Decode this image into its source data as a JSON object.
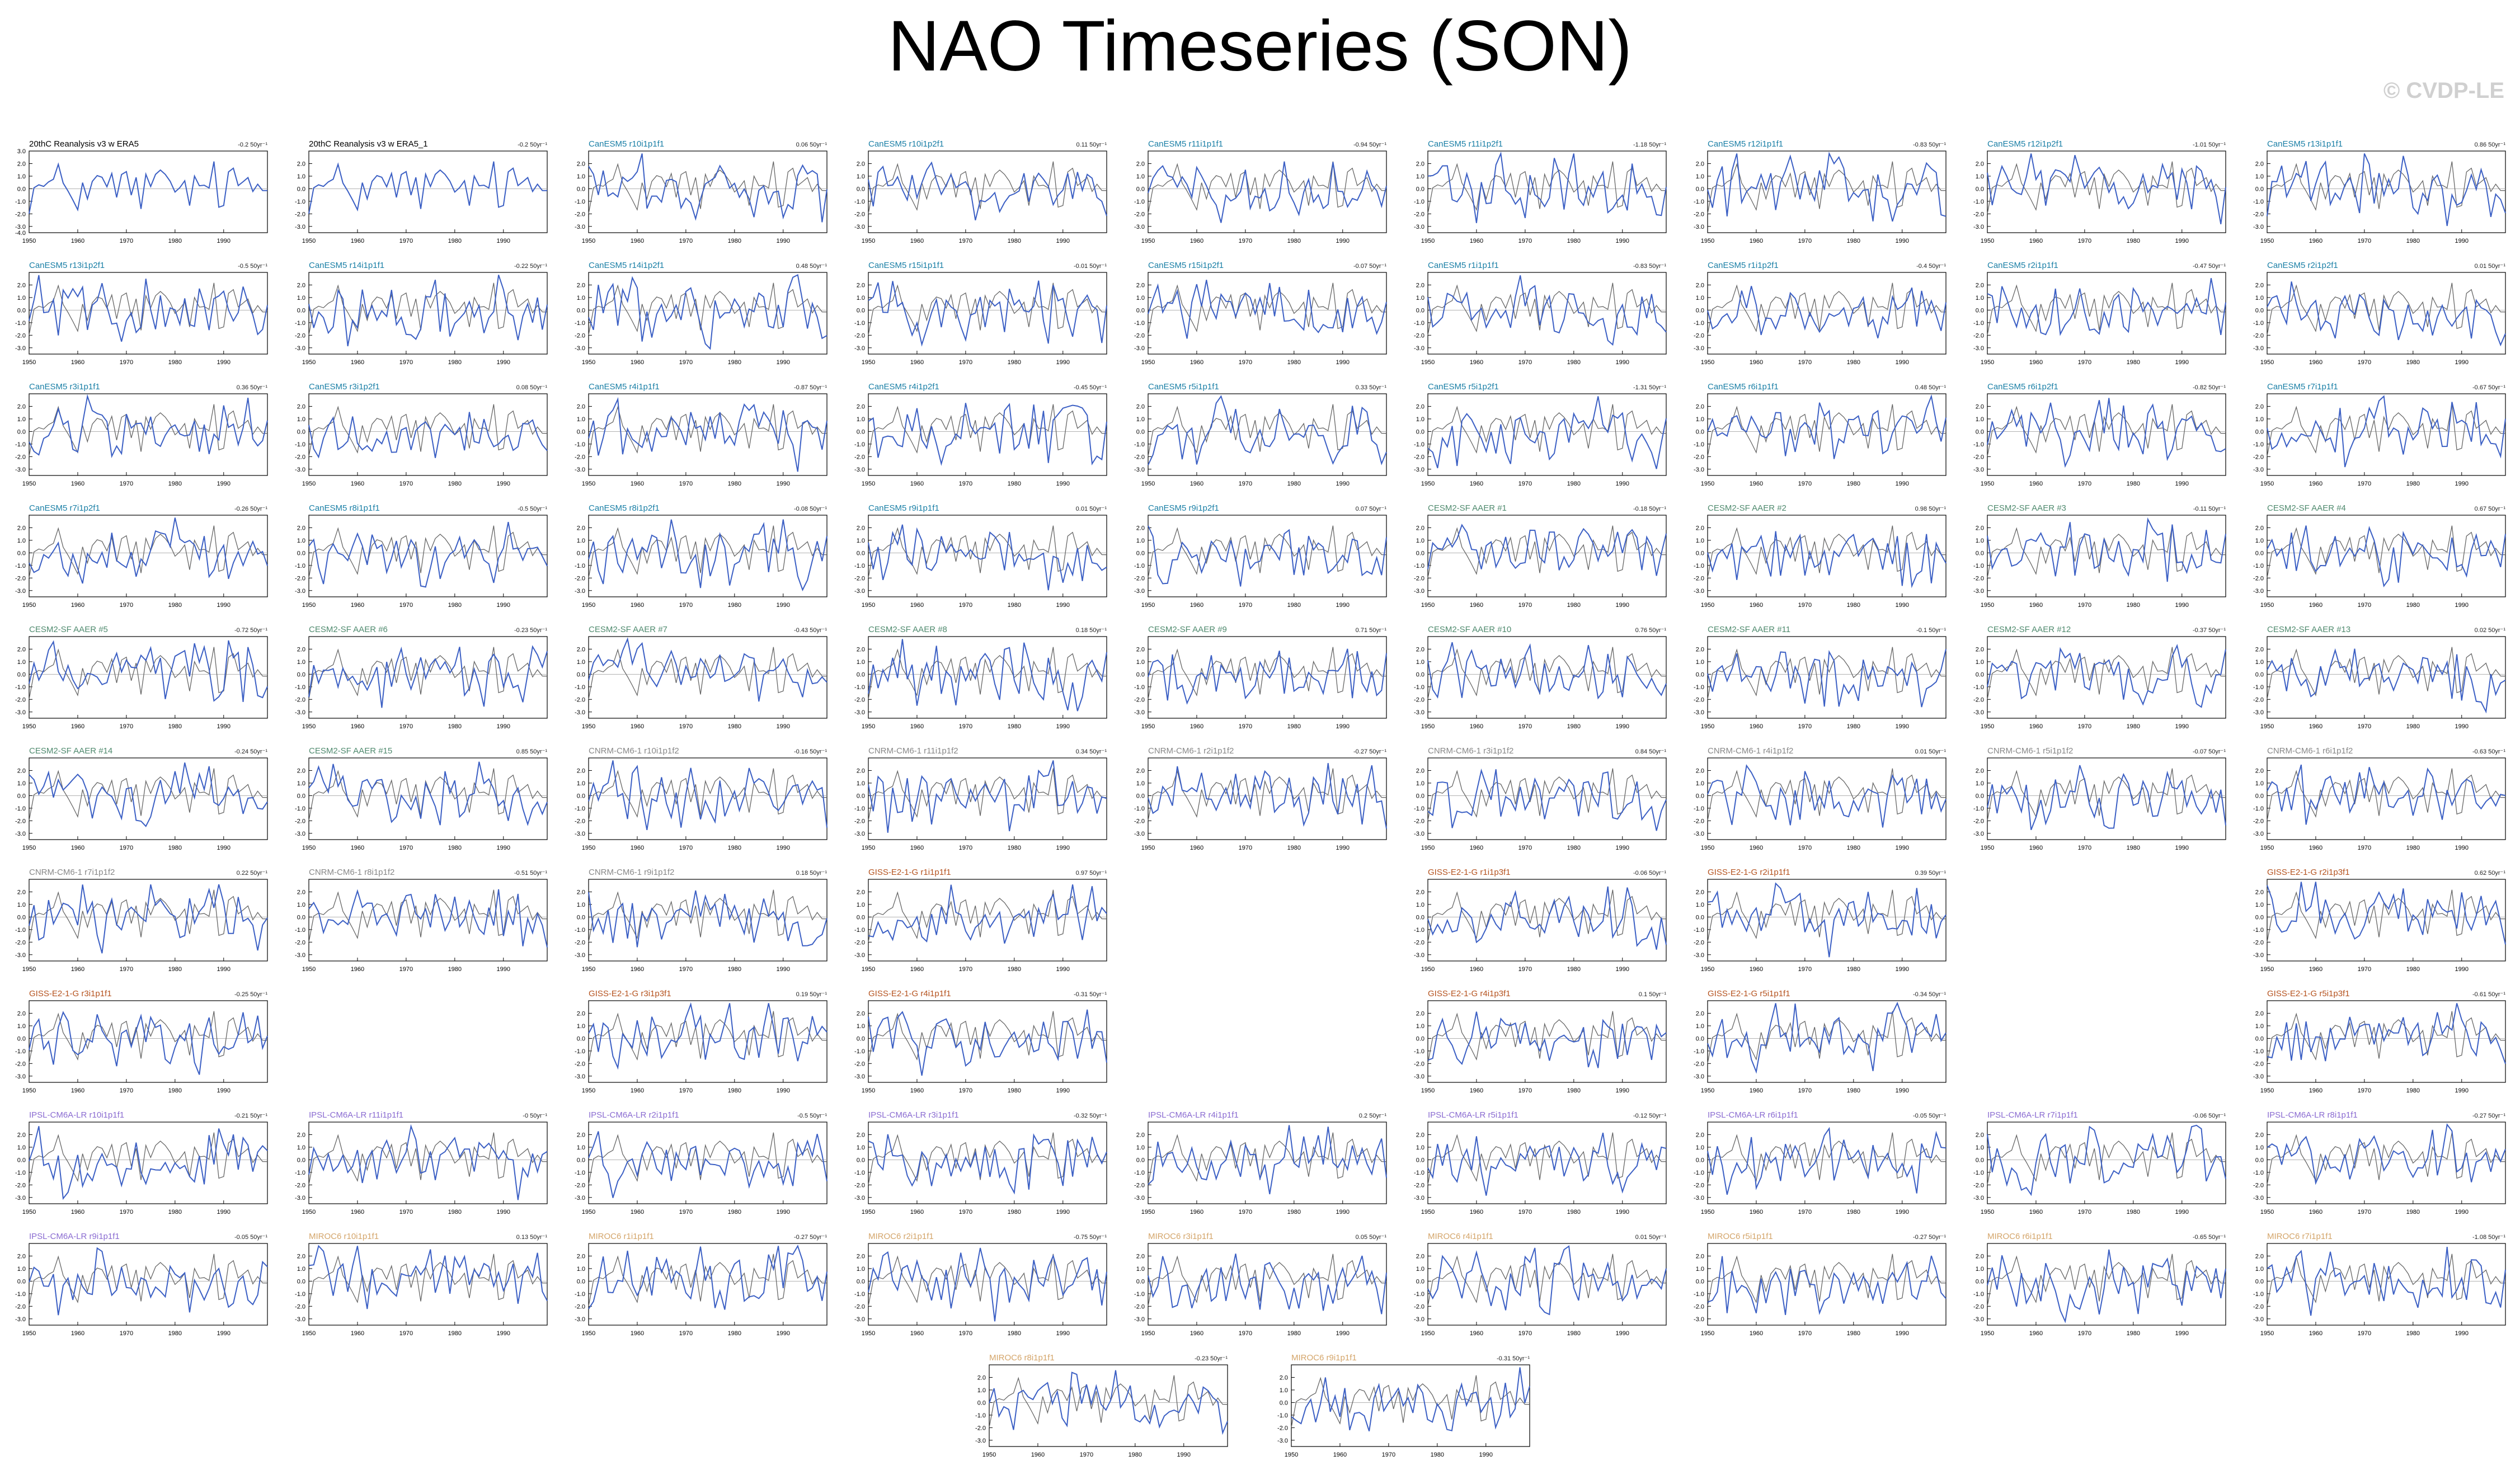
{
  "title": "NAO Timeseries (SON)",
  "watermark": "© CVDP-LE",
  "colors": {
    "panel_line": "#3b5fc4",
    "observed_line": "#666666",
    "obs_label": "#000000",
    "CanESM5": "#1a7fa6",
    "CESM2-SF AAER": "#4f8a6e",
    "CNRM-CM6-1": "#888888",
    "GISS-E2-1-G": "#b5531f",
    "IPSL-CM6A-LR": "#8a6bd1",
    "MIROC6": "#d4a56a"
  },
  "chart_data": {
    "type": "line",
    "x_ticks": [
      1950,
      1960,
      1970,
      1980,
      1990
    ],
    "y_ticks": [
      "2.0",
      "1.0",
      "0.0",
      "-1.0",
      "-2.0",
      "-3.0"
    ],
    "y_ticks_extended": [
      "3.0",
      "2.0",
      "1.0",
      "0.0",
      "-1.0",
      "-2.0",
      "-3.0",
      "-4.0"
    ],
    "xlim": [
      1950,
      1999
    ],
    "ylim": [
      -3.5,
      3.0
    ],
    "panels": [
      {
        "label": "20thC Reanalysis v3 w ERA5",
        "trend": "-0.2 50yr⁻¹",
        "group": "obs",
        "row": 0,
        "col": 0
      },
      {
        "label": "20thC Reanalysis v3 w ERA5_1",
        "trend": "-0.2 50yr⁻¹",
        "group": "obs",
        "row": 0,
        "col": 1
      },
      {
        "label": "CanESM5 r10i1p1f1",
        "trend": "0.06 50yr⁻¹",
        "group": "CanESM5",
        "row": 0,
        "col": 2
      },
      {
        "label": "CanESM5 r10i1p2f1",
        "trend": "0.11 50yr⁻¹",
        "group": "CanESM5",
        "row": 0,
        "col": 3
      },
      {
        "label": "CanESM5 r11i1p1f1",
        "trend": "-0.94 50yr⁻¹",
        "group": "CanESM5",
        "row": 0,
        "col": 4
      },
      {
        "label": "CanESM5 r11i1p2f1",
        "trend": "-1.18 50yr⁻¹",
        "group": "CanESM5",
        "row": 0,
        "col": 5
      },
      {
        "label": "CanESM5 r12i1p1f1",
        "trend": "-0.83 50yr⁻¹",
        "group": "CanESM5",
        "row": 0,
        "col": 6
      },
      {
        "label": "CanESM5 r12i1p2f1",
        "trend": "-1.01 50yr⁻¹",
        "group": "CanESM5",
        "row": 0,
        "col": 7
      },
      {
        "label": "CanESM5 r13i1p1f1",
        "trend": "0.86 50yr⁻¹",
        "group": "CanESM5",
        "row": 0,
        "col": 8
      },
      {
        "label": "CanESM5 r13i1p2f1",
        "trend": "-0.5 50yr⁻¹",
        "group": "CanESM5",
        "row": 1,
        "col": 0
      },
      {
        "label": "CanESM5 r14i1p1f1",
        "trend": "-0.22 50yr⁻¹",
        "group": "CanESM5",
        "row": 1,
        "col": 1
      },
      {
        "label": "CanESM5 r14i1p2f1",
        "trend": "0.48 50yr⁻¹",
        "group": "CanESM5",
        "row": 1,
        "col": 2
      },
      {
        "label": "CanESM5 r15i1p1f1",
        "trend": "-0.01 50yr⁻¹",
        "group": "CanESM5",
        "row": 1,
        "col": 3
      },
      {
        "label": "CanESM5 r15i1p2f1",
        "trend": "-0.07 50yr⁻¹",
        "group": "CanESM5",
        "row": 1,
        "col": 4
      },
      {
        "label": "CanESM5 r1i1p1f1",
        "trend": "-0.83 50yr⁻¹",
        "group": "CanESM5",
        "row": 1,
        "col": 5
      },
      {
        "label": "CanESM5 r1i1p2f1",
        "trend": "-0.4 50yr⁻¹",
        "group": "CanESM5",
        "row": 1,
        "col": 6
      },
      {
        "label": "CanESM5 r2i1p1f1",
        "trend": "-0.47 50yr⁻¹",
        "group": "CanESM5",
        "row": 1,
        "col": 7
      },
      {
        "label": "CanESM5 r2i1p2f1",
        "trend": "0.01 50yr⁻¹",
        "group": "CanESM5",
        "row": 1,
        "col": 8
      },
      {
        "label": "CanESM5 r3i1p1f1",
        "trend": "0.36 50yr⁻¹",
        "group": "CanESM5",
        "row": 2,
        "col": 0
      },
      {
        "label": "CanESM5 r3i1p2f1",
        "trend": "0.08 50yr⁻¹",
        "group": "CanESM5",
        "row": 2,
        "col": 1
      },
      {
        "label": "CanESM5 r4i1p1f1",
        "trend": "-0.87 50yr⁻¹",
        "group": "CanESM5",
        "row": 2,
        "col": 2
      },
      {
        "label": "CanESM5 r4i1p2f1",
        "trend": "-0.45 50yr⁻¹",
        "group": "CanESM5",
        "row": 2,
        "col": 3
      },
      {
        "label": "CanESM5 r5i1p1f1",
        "trend": "0.33 50yr⁻¹",
        "group": "CanESM5",
        "row": 2,
        "col": 4
      },
      {
        "label": "CanESM5 r5i1p2f1",
        "trend": "-1.31 50yr⁻¹",
        "group": "CanESM5",
        "row": 2,
        "col": 5
      },
      {
        "label": "CanESM5 r6i1p1f1",
        "trend": "0.48 50yr⁻¹",
        "group": "CanESM5",
        "row": 2,
        "col": 6
      },
      {
        "label": "CanESM5 r6i1p2f1",
        "trend": "-0.82 50yr⁻¹",
        "group": "CanESM5",
        "row": 2,
        "col": 7
      },
      {
        "label": "CanESM5 r7i1p1f1",
        "trend": "-0.67 50yr⁻¹",
        "group": "CanESM5",
        "row": 2,
        "col": 8
      },
      {
        "label": "CanESM5 r7i1p2f1",
        "trend": "-0.26 50yr⁻¹",
        "group": "CanESM5",
        "row": 3,
        "col": 0
      },
      {
        "label": "CanESM5 r8i1p1f1",
        "trend": "-0.5 50yr⁻¹",
        "group": "CanESM5",
        "row": 3,
        "col": 1
      },
      {
        "label": "CanESM5 r8i1p2f1",
        "trend": "-0.08 50yr⁻¹",
        "group": "CanESM5",
        "row": 3,
        "col": 2
      },
      {
        "label": "CanESM5 r9i1p1f1",
        "trend": "0.01 50yr⁻¹",
        "group": "CanESM5",
        "row": 3,
        "col": 3
      },
      {
        "label": "CanESM5 r9i1p2f1",
        "trend": "0.07 50yr⁻¹",
        "group": "CanESM5",
        "row": 3,
        "col": 4
      },
      {
        "label": "CESM2-SF AAER #1",
        "trend": "-0.18 50yr⁻¹",
        "group": "CESM2-SF AAER",
        "row": 3,
        "col": 5
      },
      {
        "label": "CESM2-SF AAER #2",
        "trend": "0.98 50yr⁻¹",
        "group": "CESM2-SF AAER",
        "row": 3,
        "col": 6
      },
      {
        "label": "CESM2-SF AAER #3",
        "trend": "-0.11 50yr⁻¹",
        "group": "CESM2-SF AAER",
        "row": 3,
        "col": 7
      },
      {
        "label": "CESM2-SF AAER #4",
        "trend": "0.67 50yr⁻¹",
        "group": "CESM2-SF AAER",
        "row": 3,
        "col": 8
      },
      {
        "label": "CESM2-SF AAER #5",
        "trend": "-0.72 50yr⁻¹",
        "group": "CESM2-SF AAER",
        "row": 4,
        "col": 0
      },
      {
        "label": "CESM2-SF AAER #6",
        "trend": "-0.23 50yr⁻¹",
        "group": "CESM2-SF AAER",
        "row": 4,
        "col": 1
      },
      {
        "label": "CESM2-SF AAER #7",
        "trend": "-0.43 50yr⁻¹",
        "group": "CESM2-SF AAER",
        "row": 4,
        "col": 2
      },
      {
        "label": "CESM2-SF AAER #8",
        "trend": "0.18 50yr⁻¹",
        "group": "CESM2-SF AAER",
        "row": 4,
        "col": 3
      },
      {
        "label": "CESM2-SF AAER #9",
        "trend": "0.71 50yr⁻¹",
        "group": "CESM2-SF AAER",
        "row": 4,
        "col": 4
      },
      {
        "label": "CESM2-SF AAER #10",
        "trend": "0.76 50yr⁻¹",
        "group": "CESM2-SF AAER",
        "row": 4,
        "col": 5
      },
      {
        "label": "CESM2-SF AAER #11",
        "trend": "-0.1 50yr⁻¹",
        "group": "CESM2-SF AAER",
        "row": 4,
        "col": 6
      },
      {
        "label": "CESM2-SF AAER #12",
        "trend": "-0.37 50yr⁻¹",
        "group": "CESM2-SF AAER",
        "row": 4,
        "col": 7
      },
      {
        "label": "CESM2-SF AAER #13",
        "trend": "0.02 50yr⁻¹",
        "group": "CESM2-SF AAER",
        "row": 4,
        "col": 8
      },
      {
        "label": "CESM2-SF AAER #14",
        "trend": "-0.24 50yr⁻¹",
        "group": "CESM2-SF AAER",
        "row": 5,
        "col": 0
      },
      {
        "label": "CESM2-SF AAER #15",
        "trend": "0.85 50yr⁻¹",
        "group": "CESM2-SF AAER",
        "row": 5,
        "col": 1
      },
      {
        "label": "CNRM-CM6-1 r10i1p1f2",
        "trend": "-0.16 50yr⁻¹",
        "group": "CNRM-CM6-1",
        "row": 5,
        "col": 2
      },
      {
        "label": "CNRM-CM6-1 r11i1p1f2",
        "trend": "0.34 50yr⁻¹",
        "group": "CNRM-CM6-1",
        "row": 5,
        "col": 3
      },
      {
        "label": "CNRM-CM6-1 r2i1p1f2",
        "trend": "-0.27 50yr⁻¹",
        "group": "CNRM-CM6-1",
        "row": 5,
        "col": 4
      },
      {
        "label": "CNRM-CM6-1 r3i1p1f2",
        "trend": "0.84 50yr⁻¹",
        "group": "CNRM-CM6-1",
        "row": 5,
        "col": 5
      },
      {
        "label": "CNRM-CM6-1 r4i1p1f2",
        "trend": "0.01 50yr⁻¹",
        "group": "CNRM-CM6-1",
        "row": 5,
        "col": 6
      },
      {
        "label": "CNRM-CM6-1 r5i1p1f2",
        "trend": "-0.07 50yr⁻¹",
        "group": "CNRM-CM6-1",
        "row": 5,
        "col": 7
      },
      {
        "label": "CNRM-CM6-1 r6i1p1f2",
        "trend": "-0.63 50yr⁻¹",
        "group": "CNRM-CM6-1",
        "row": 5,
        "col": 8
      },
      {
        "label": "CNRM-CM6-1 r7i1p1f2",
        "trend": "0.22 50yr⁻¹",
        "group": "CNRM-CM6-1",
        "row": 6,
        "col": 0
      },
      {
        "label": "CNRM-CM6-1 r8i1p1f2",
        "trend": "-0.51 50yr⁻¹",
        "group": "CNRM-CM6-1",
        "row": 6,
        "col": 1
      },
      {
        "label": "CNRM-CM6-1 r9i1p1f2",
        "trend": "0.18 50yr⁻¹",
        "group": "CNRM-CM6-1",
        "row": 6,
        "col": 2
      },
      {
        "label": "GISS-E2-1-G r1i1p1f1",
        "trend": "0.97 50yr⁻¹",
        "group": "GISS-E2-1-G",
        "row": 6,
        "col": 3
      },
      {
        "label": "GISS-E2-1-G r1i1p3f1",
        "trend": "-0.06 50yr⁻¹",
        "group": "GISS-E2-1-G",
        "row": 6,
        "col": 5
      },
      {
        "label": "GISS-E2-1-G r2i1p1f1",
        "trend": "0.39 50yr⁻¹",
        "group": "GISS-E2-1-G",
        "row": 6,
        "col": 6
      },
      {
        "label": "GISS-E2-1-G r2i1p3f1",
        "trend": "0.62 50yr⁻¹",
        "group": "GISS-E2-1-G",
        "row": 6,
        "col": 8
      },
      {
        "label": "GISS-E2-1-G r3i1p1f1",
        "trend": "-0.25 50yr⁻¹",
        "group": "GISS-E2-1-G",
        "row": 7,
        "col": 0
      },
      {
        "label": "GISS-E2-1-G r3i1p3f1",
        "trend": "0.19 50yr⁻¹",
        "group": "GISS-E2-1-G",
        "row": 7,
        "col": 2
      },
      {
        "label": "GISS-E2-1-G r4i1p1f1",
        "trend": "-0.31 50yr⁻¹",
        "group": "GISS-E2-1-G",
        "row": 7,
        "col": 3
      },
      {
        "label": "GISS-E2-1-G r4i1p3f1",
        "trend": "0.1 50yr⁻¹",
        "group": "GISS-E2-1-G",
        "row": 7,
        "col": 5
      },
      {
        "label": "GISS-E2-1-G r5i1p1f1",
        "trend": "-0.34 50yr⁻¹",
        "group": "GISS-E2-1-G",
        "row": 7,
        "col": 6
      },
      {
        "label": "GISS-E2-1-G r5i1p3f1",
        "trend": "-0.61 50yr⁻¹",
        "group": "GISS-E2-1-G",
        "row": 7,
        "col": 8
      },
      {
        "label": "IPSL-CM6A-LR r10i1p1f1",
        "trend": "-0.21 50yr⁻¹",
        "group": "IPSL-CM6A-LR",
        "row": 8,
        "col": 0
      },
      {
        "label": "IPSL-CM6A-LR r11i1p1f1",
        "trend": "-0 50yr⁻¹",
        "group": "IPSL-CM6A-LR",
        "row": 8,
        "col": 1
      },
      {
        "label": "IPSL-CM6A-LR r2i1p1f1",
        "trend": "-0.5 50yr⁻¹",
        "group": "IPSL-CM6A-LR",
        "row": 8,
        "col": 2
      },
      {
        "label": "IPSL-CM6A-LR r3i1p1f1",
        "trend": "-0.32 50yr⁻¹",
        "group": "IPSL-CM6A-LR",
        "row": 8,
        "col": 3
      },
      {
        "label": "IPSL-CM6A-LR r4i1p1f1",
        "trend": "0.2 50yr⁻¹",
        "group": "IPSL-CM6A-LR",
        "row": 8,
        "col": 4
      },
      {
        "label": "IPSL-CM6A-LR r5i1p1f1",
        "trend": "-0.12 50yr⁻¹",
        "group": "IPSL-CM6A-LR",
        "row": 8,
        "col": 5
      },
      {
        "label": "IPSL-CM6A-LR r6i1p1f1",
        "trend": "-0.05 50yr⁻¹",
        "group": "IPSL-CM6A-LR",
        "row": 8,
        "col": 6
      },
      {
        "label": "IPSL-CM6A-LR r7i1p1f1",
        "trend": "-0.06 50yr⁻¹",
        "group": "IPSL-CM6A-LR",
        "row": 8,
        "col": 7
      },
      {
        "label": "IPSL-CM6A-LR r8i1p1f1",
        "trend": "-0.27 50yr⁻¹",
        "group": "IPSL-CM6A-LR",
        "row": 8,
        "col": 8
      },
      {
        "label": "IPSL-CM6A-LR r9i1p1f1",
        "trend": "-0.05 50yr⁻¹",
        "group": "IPSL-CM6A-LR",
        "row": 9,
        "col": 0
      },
      {
        "label": "MIROC6 r10i1p1f1",
        "trend": "0.13 50yr⁻¹",
        "group": "MIROC6",
        "row": 9,
        "col": 1
      },
      {
        "label": "MIROC6 r1i1p1f1",
        "trend": "-0.27 50yr⁻¹",
        "group": "MIROC6",
        "row": 9,
        "col": 2
      },
      {
        "label": "MIROC6 r2i1p1f1",
        "trend": "-0.75 50yr⁻¹",
        "group": "MIROC6",
        "row": 9,
        "col": 3
      },
      {
        "label": "MIROC6 r3i1p1f1",
        "trend": "0.05 50yr⁻¹",
        "group": "MIROC6",
        "row": 9,
        "col": 4
      },
      {
        "label": "MIROC6 r4i1p1f1",
        "trend": "0.01 50yr⁻¹",
        "group": "MIROC6",
        "row": 9,
        "col": 5
      },
      {
        "label": "MIROC6 r5i1p1f1",
        "trend": "-0.27 50yr⁻¹",
        "group": "MIROC6",
        "row": 9,
        "col": 6
      },
      {
        "label": "MIROC6 r6i1p1f1",
        "trend": "-0.65 50yr⁻¹",
        "group": "MIROC6",
        "row": 9,
        "col": 7
      },
      {
        "label": "MIROC6 r7i1p1f1",
        "trend": "-1.08 50yr⁻¹",
        "group": "MIROC6",
        "row": 9,
        "col": 8
      },
      {
        "label": "MIROC6 r8i1p1f1",
        "trend": "-0.23 50yr⁻¹",
        "group": "MIROC6",
        "row": 10,
        "col": 0
      },
      {
        "label": "MIROC6 r9i1p1f1",
        "trend": "-0.31 50yr⁻¹",
        "group": "MIROC6",
        "row": 10,
        "col": 1
      }
    ]
  }
}
